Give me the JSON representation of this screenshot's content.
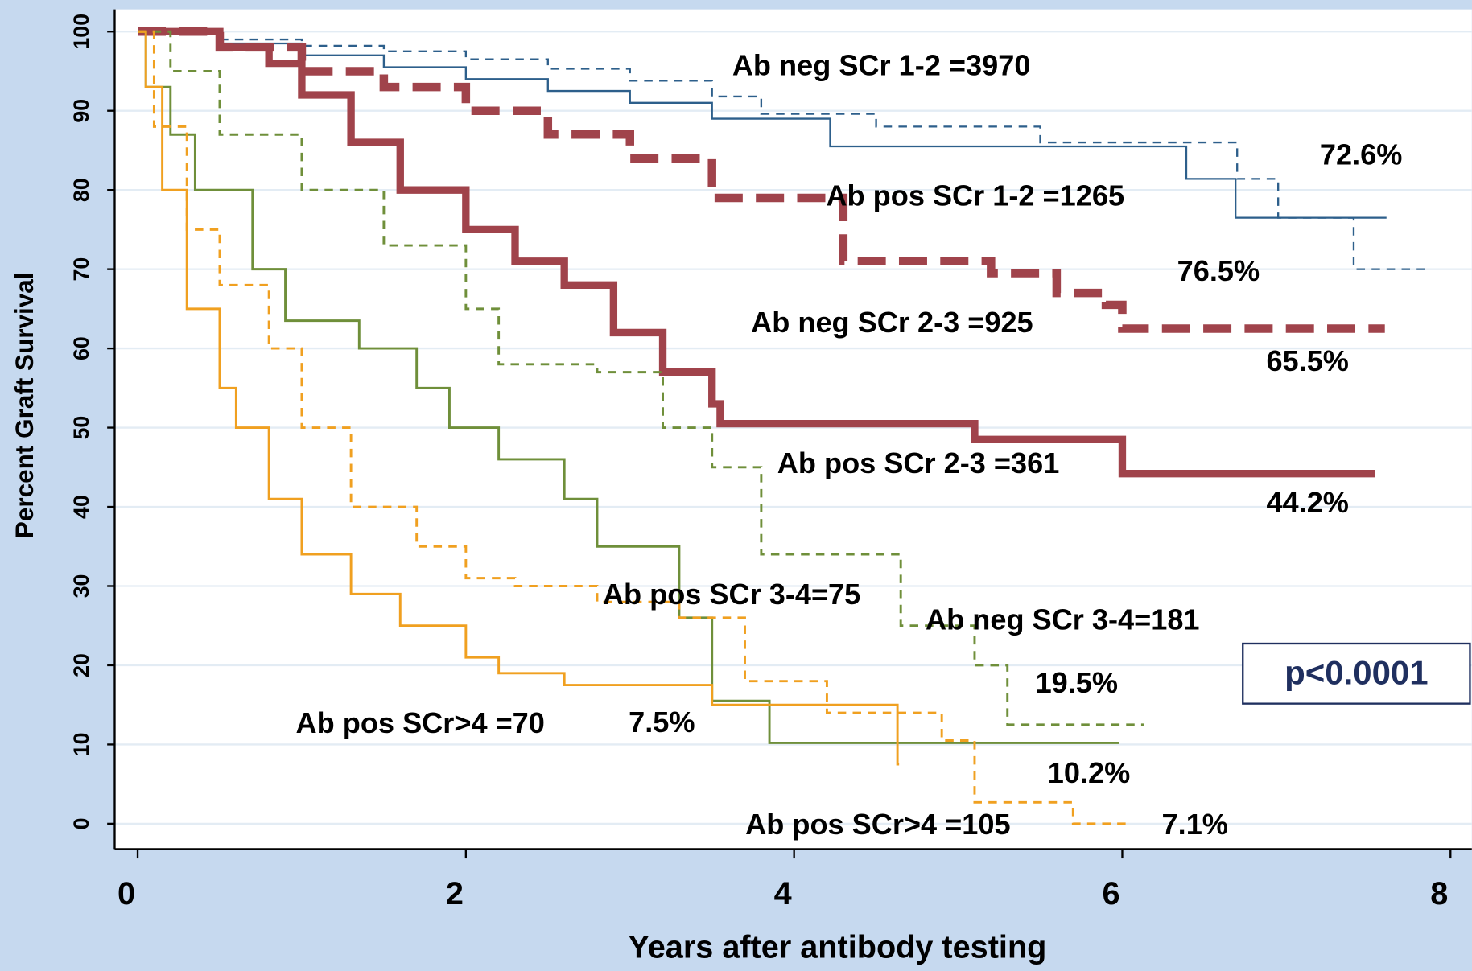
{
  "chart_data": {
    "type": "line",
    "step": true,
    "xlabel": "Years after antibody testing",
    "ylabel": "Percent Graft Survival",
    "xlim": [
      -0.14,
      8.13
    ],
    "ylim": [
      -3.2,
      102.8
    ],
    "xticks": [
      0,
      2,
      4,
      6,
      8
    ],
    "yticks": [
      0,
      10,
      20,
      30,
      40,
      50,
      60,
      70,
      80,
      90,
      100
    ],
    "grid": true,
    "series": [
      {
        "name": "Ab neg SCr 1-2 =3970",
        "color": "#2d5f8b",
        "dashed": true,
        "linewidth": 2,
        "x": [
          0,
          0.5,
          1,
          1.5,
          2,
          2.5,
          3,
          3.5,
          3.8,
          4.5,
          5.5,
          6.7,
          6.95,
          7.41,
          7.87
        ],
        "values": [
          100,
          99,
          98.2,
          97.5,
          96.5,
          95.3,
          93.8,
          91.8,
          89.6,
          88,
          86,
          81.4,
          76.5,
          70,
          70
        ]
      },
      {
        "name": "Ab pos SCr 1-2 =1265",
        "color": "#2d5f8b",
        "dashed": false,
        "linewidth": 2,
        "x": [
          0,
          0.5,
          1,
          1.5,
          2,
          2.5,
          3,
          3.5,
          4.22,
          6.39,
          6.69,
          7.61
        ],
        "values": [
          100,
          98.5,
          97,
          95.5,
          94,
          92.5,
          91,
          89,
          85.5,
          81.4,
          76.5,
          76.5
        ]
      },
      {
        "name": "Ab neg SCr 2-3 =925",
        "color": "#a0434b",
        "dashed": true,
        "linewidth": 9,
        "x": [
          0,
          0.5,
          1,
          1.5,
          2,
          2.5,
          3,
          3.5,
          4.3,
          5.2,
          5.6,
          5.9,
          6.0,
          7.6
        ],
        "values": [
          100,
          98,
          95,
          93,
          90,
          87,
          84,
          79,
          71,
          69.5,
          67,
          65.5,
          62.5,
          62.5
        ]
      },
      {
        "name": "Ab pos SCr 2-3 =361",
        "color": "#a0434b",
        "dashed": false,
        "linewidth": 8,
        "x": [
          0,
          0.5,
          0.8,
          1,
          1.3,
          1.6,
          2,
          2.3,
          2.6,
          2.9,
          3.2,
          3.5,
          3.55,
          5.1,
          6.0,
          7.54
        ],
        "values": [
          100,
          98,
          96,
          92,
          86,
          80,
          75,
          71,
          68,
          62,
          57,
          53,
          50.5,
          48.5,
          44.2,
          44.2
        ]
      },
      {
        "name": "Ab neg SCr 3-4=181",
        "color": "#6f8f3a",
        "dashed": true,
        "linewidth": 2.5,
        "x": [
          0,
          0.2,
          0.5,
          1,
          1.5,
          2,
          2.2,
          2.8,
          3.2,
          3.5,
          3.8,
          4.65,
          5.1,
          5.3,
          6.13
        ],
        "values": [
          100,
          95,
          87,
          80,
          73,
          65,
          58,
          57,
          50,
          45,
          34,
          25,
          20,
          12.5,
          12.5
        ]
      },
      {
        "name": "Ab pos SCr 3-4=75",
        "color": "#6f8f3a",
        "dashed": false,
        "linewidth": 2.5,
        "x": [
          0,
          0.05,
          0.2,
          0.35,
          0.7,
          0.9,
          1.35,
          1.7,
          1.9,
          2.2,
          2.6,
          2.8,
          3.3,
          3.5,
          3.85,
          5.98
        ],
        "values": [
          100,
          93,
          87,
          80,
          70,
          63.5,
          60,
          55,
          50,
          46,
          41,
          35,
          26,
          15.5,
          10.2,
          10.2
        ]
      },
      {
        "name": "Ab pos SCr>4 =105",
        "color": "#f0a020",
        "dashed": true,
        "linewidth": 2.5,
        "x": [
          0,
          0.1,
          0.3,
          0.5,
          0.8,
          1,
          1.3,
          1.7,
          2,
          2.3,
          2.8,
          3.3,
          3.7,
          4.2,
          4.9,
          5.1,
          5.7,
          6.06
        ],
        "values": [
          100,
          88,
          75,
          68,
          60,
          50,
          40,
          35,
          31,
          30,
          28,
          26,
          18,
          14,
          10.5,
          2.7,
          0,
          0
        ]
      },
      {
        "name": "Ab pos SCr>4 =70",
        "color": "#f0a020",
        "dashed": false,
        "linewidth": 2.5,
        "x": [
          0,
          0.05,
          0.15,
          0.3,
          0.5,
          0.6,
          0.8,
          1,
          1.3,
          1.6,
          2,
          2.2,
          2.6,
          3.5,
          4.63,
          4.64
        ],
        "values": [
          100,
          93,
          80,
          65,
          55,
          50,
          41,
          34,
          29,
          25,
          21,
          19,
          17.5,
          15,
          7.5,
          7.5
        ]
      }
    ],
    "annotations": [
      "72.6%",
      "76.5%",
      "65.5%",
      "44.2%",
      "19.5%",
      "10.2%",
      "7.5%",
      "7.1%",
      "p<0.0001"
    ]
  }
}
